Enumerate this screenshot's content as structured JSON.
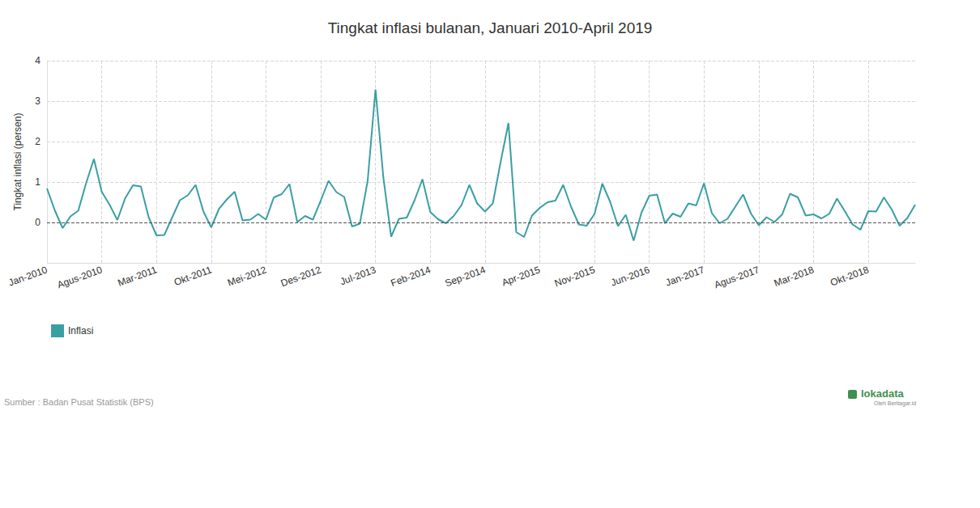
{
  "chart_data": {
    "type": "line",
    "title": "Tingkat inflasi bulanan, Januari 2010-April 2019",
    "y_label": "Tingkat inflasi (persen)",
    "annotations": [
      "Sumber : Badan Pusat Statistik (BPS)",
      "lokadata",
      "Oleh Beritagar.id"
    ],
    "categories": [
      "Jan-2010",
      null,
      null,
      null,
      null,
      null,
      null,
      "Agus-2010",
      null,
      null,
      null,
      null,
      null,
      null,
      "Mar-2011",
      null,
      null,
      null,
      null,
      null,
      null,
      "Okt-2011",
      null,
      null,
      null,
      null,
      null,
      null,
      "Mei-2012",
      null,
      null,
      null,
      null,
      null,
      null,
      "Des-2012",
      null,
      null,
      null,
      null,
      null,
      null,
      "Jul-2013",
      null,
      null,
      null,
      null,
      null,
      null,
      "Feb-2014",
      null,
      null,
      null,
      null,
      null,
      null,
      "Sep-2014",
      null,
      null,
      null,
      null,
      null,
      null,
      "Apr-2015",
      null,
      null,
      null,
      null,
      null,
      null,
      "Nov-2015",
      null,
      null,
      null,
      null,
      null,
      null,
      "Jun-2016",
      null,
      null,
      null,
      null,
      null,
      null,
      "Jan-2017",
      null,
      null,
      null,
      null,
      null,
      null,
      "Agus-2017",
      null,
      null,
      null,
      null,
      null,
      null,
      "Mar-2018",
      null,
      null,
      null,
      null,
      null,
      null,
      "Okt-2018",
      null,
      null,
      null,
      null,
      null,
      null
    ],
    "series": [
      {
        "name": "Inflasi",
        "color": "#3a9fa3",
        "values": [
          0.84,
          0.3,
          -0.14,
          0.15,
          0.29,
          0.97,
          1.57,
          0.76,
          0.44,
          0.06,
          0.6,
          0.92,
          0.89,
          0.13,
          -0.32,
          -0.31,
          0.12,
          0.55,
          0.67,
          0.93,
          0.27,
          -0.12,
          0.34,
          0.57,
          0.76,
          0.05,
          0.07,
          0.21,
          0.07,
          0.62,
          0.7,
          0.95,
          0.01,
          0.16,
          0.07,
          0.54,
          1.03,
          0.75,
          0.63,
          -0.1,
          -0.03,
          1.03,
          3.29,
          1.12,
          -0.35,
          0.09,
          0.12,
          0.55,
          1.07,
          0.26,
          0.08,
          -0.02,
          0.16,
          0.43,
          0.93,
          0.47,
          0.27,
          0.47,
          1.5,
          2.46,
          -0.24,
          -0.36,
          0.17,
          0.36,
          0.5,
          0.54,
          0.93,
          0.39,
          -0.05,
          -0.08,
          0.21,
          0.96,
          0.51,
          -0.09,
          0.19,
          -0.45,
          0.24,
          0.66,
          0.69,
          -0.02,
          0.22,
          0.14,
          0.47,
          0.42,
          0.97,
          0.23,
          -0.02,
          0.09,
          0.39,
          0.69,
          0.22,
          -0.07,
          0.13,
          0.01,
          0.2,
          0.71,
          0.62,
          0.17,
          0.2,
          0.1,
          0.21,
          0.59,
          0.28,
          -0.05,
          -0.18,
          0.28,
          0.27,
          0.62,
          0.32,
          -0.08,
          0.11,
          0.44
        ]
      }
    ],
    "ylim": [
      -1,
      4
    ],
    "yticks": [
      0,
      1,
      2,
      3,
      4
    ],
    "grid": true,
    "legend": "bottom-left"
  }
}
